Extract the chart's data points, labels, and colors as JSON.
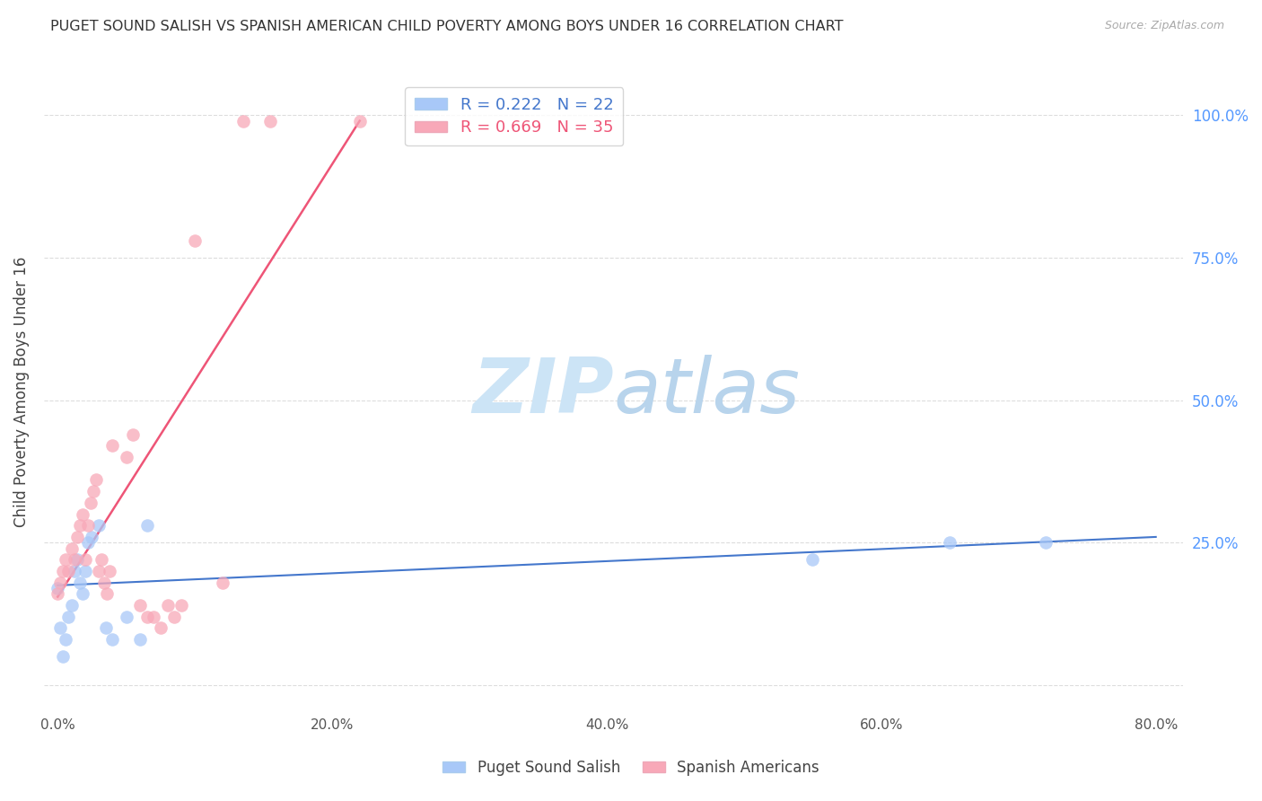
{
  "title": "PUGET SOUND SALISH VS SPANISH AMERICAN CHILD POVERTY AMONG BOYS UNDER 16 CORRELATION CHART",
  "source": "Source: ZipAtlas.com",
  "ylabel": "Child Poverty Among Boys Under 16",
  "xlabel_ticks": [
    "0.0%",
    "20.0%",
    "40.0%",
    "60.0%",
    "80.0%"
  ],
  "xlabel_vals": [
    0.0,
    0.2,
    0.4,
    0.6,
    0.8
  ],
  "ylabel_ticks": [
    "100.0%",
    "75.0%",
    "50.0%",
    "25.0%"
  ],
  "ylabel_vals": [
    1.0,
    0.75,
    0.5,
    0.25
  ],
  "xlim": [
    -0.01,
    0.82
  ],
  "ylim": [
    -0.05,
    1.08
  ],
  "salish_R": 0.222,
  "salish_N": 22,
  "spanish_R": 0.669,
  "spanish_N": 35,
  "salish_color": "#a8c8f8",
  "spanish_color": "#f8a8b8",
  "salish_line_color": "#4477cc",
  "spanish_line_color": "#ee5577",
  "watermark_zip_color": "#ddeeff",
  "watermark_atlas_color": "#c8ddf0",
  "background_color": "#ffffff",
  "title_color": "#333333",
  "source_color": "#aaaaaa",
  "axis_label_color": "#444444",
  "right_tick_color": "#5599ff",
  "grid_color": "#dddddd",
  "salish_x": [
    0.0,
    0.002,
    0.004,
    0.006,
    0.008,
    0.01,
    0.012,
    0.014,
    0.016,
    0.018,
    0.02,
    0.022,
    0.025,
    0.03,
    0.035,
    0.04,
    0.05,
    0.06,
    0.065,
    0.55,
    0.65,
    0.72
  ],
  "salish_y": [
    0.17,
    0.1,
    0.05,
    0.08,
    0.12,
    0.14,
    0.2,
    0.22,
    0.18,
    0.16,
    0.2,
    0.25,
    0.26,
    0.28,
    0.1,
    0.08,
    0.12,
    0.08,
    0.28,
    0.22,
    0.25,
    0.25
  ],
  "spanish_x": [
    0.0,
    0.002,
    0.004,
    0.006,
    0.008,
    0.01,
    0.012,
    0.014,
    0.016,
    0.018,
    0.02,
    0.022,
    0.024,
    0.026,
    0.028,
    0.03,
    0.032,
    0.034,
    0.036,
    0.038,
    0.04,
    0.05,
    0.055,
    0.06,
    0.065,
    0.07,
    0.075,
    0.08,
    0.085,
    0.09,
    0.1,
    0.12,
    0.135,
    0.155,
    0.22
  ],
  "spanish_y": [
    0.16,
    0.18,
    0.2,
    0.22,
    0.2,
    0.24,
    0.22,
    0.26,
    0.28,
    0.3,
    0.22,
    0.28,
    0.32,
    0.34,
    0.36,
    0.2,
    0.22,
    0.18,
    0.16,
    0.2,
    0.42,
    0.4,
    0.44,
    0.14,
    0.12,
    0.12,
    0.1,
    0.14,
    0.12,
    0.14,
    0.78,
    0.18,
    0.99,
    0.99,
    0.99
  ],
  "salish_trend_x": [
    0.0,
    0.8
  ],
  "salish_trend_y": [
    0.175,
    0.26
  ],
  "spanish_trend_x": [
    0.0,
    0.22
  ],
  "spanish_trend_y": [
    0.155,
    0.99
  ]
}
